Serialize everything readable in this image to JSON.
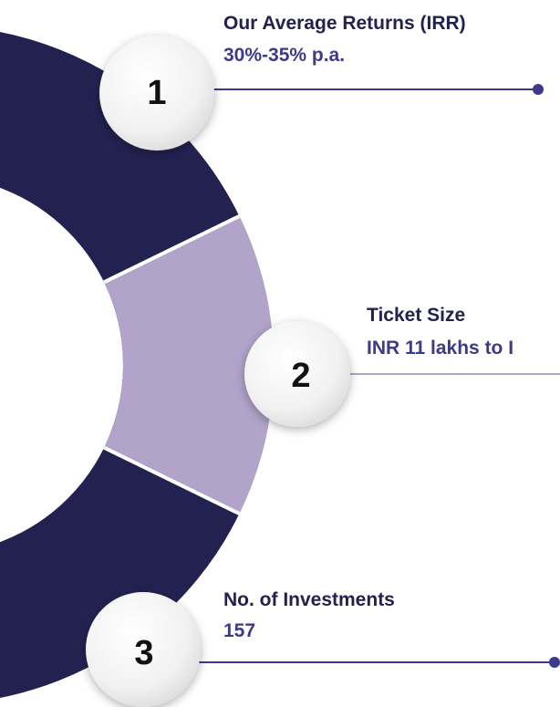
{
  "items": [
    {
      "number": "1",
      "title": "Our Average Returns (IRR)",
      "value": "30%-35% p.a."
    },
    {
      "number": "2",
      "title": "Ticket Size",
      "value": "INR 11 lakhs to I"
    },
    {
      "number": "3",
      "title": "No. of Investments",
      "value": "157"
    }
  ]
}
